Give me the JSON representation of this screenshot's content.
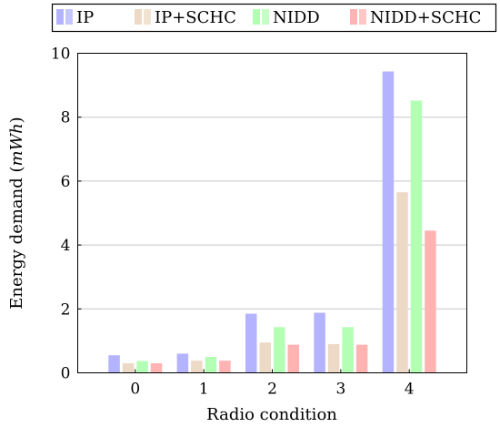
{
  "chart_data": {
    "type": "bar",
    "xlabel": "Radio condition",
    "ylabel": "Energy demand",
    "ylabel_unit": "mWh",
    "categories": [
      "0",
      "1",
      "2",
      "3",
      "4"
    ],
    "ylim": [
      0,
      10
    ],
    "yticks": [
      0,
      2,
      4,
      6,
      8,
      10
    ],
    "grid": "horizontal",
    "legend_position": "top",
    "series": [
      {
        "name": "IP",
        "color": "#b3b3ff",
        "values": [
          0.55,
          0.6,
          1.85,
          1.88,
          9.43
        ]
      },
      {
        "name": "IP+SCHC",
        "color": "#ecd9c6",
        "values": [
          0.3,
          0.38,
          0.95,
          0.9,
          5.65
        ]
      },
      {
        "name": "NIDD",
        "color": "#b3ffb3",
        "values": [
          0.37,
          0.5,
          1.43,
          1.43,
          8.52
        ]
      },
      {
        "name": "NIDD+SCHC",
        "color": "#ffb3b3",
        "values": [
          0.3,
          0.38,
          0.88,
          0.88,
          4.45
        ]
      }
    ]
  }
}
